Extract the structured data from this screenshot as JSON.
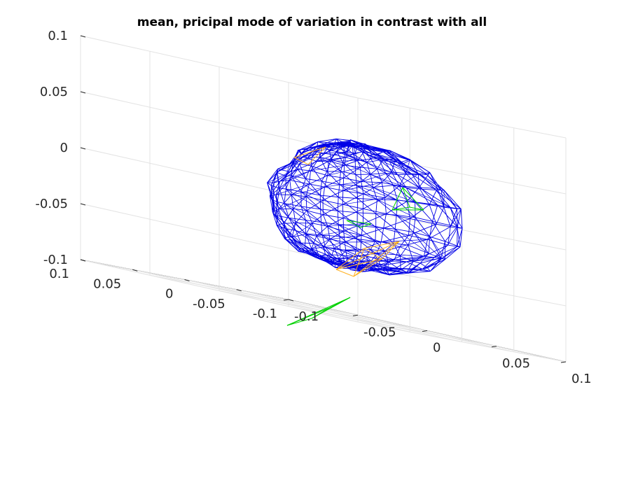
{
  "chart_data": {
    "type": "3d-mesh",
    "title": "mean, pricipal mode of variation in contrast with all",
    "xlabel": "",
    "ylabel": "",
    "zlabel": "",
    "xlim": [
      -0.1,
      0.1
    ],
    "ylim": [
      -0.1,
      0.1
    ],
    "zlim": [
      -0.1,
      0.1
    ],
    "x_ticks": [
      "-0.1",
      "-0.05",
      "0",
      "0.05",
      "0.1"
    ],
    "y_ticks": [
      "-0.1",
      "-0.05",
      "0",
      "0.05",
      "0.1"
    ],
    "z_ticks": [
      "-0.1",
      "-0.05",
      "0",
      "0.05",
      "0.1"
    ],
    "grid": true,
    "view": "3d",
    "mesh": {
      "edge_color": "#0000e6",
      "highlight_colors": [
        "#00d000",
        "#ffb020"
      ],
      "description": "closed triangulated wireframe surface centered near origin"
    }
  }
}
